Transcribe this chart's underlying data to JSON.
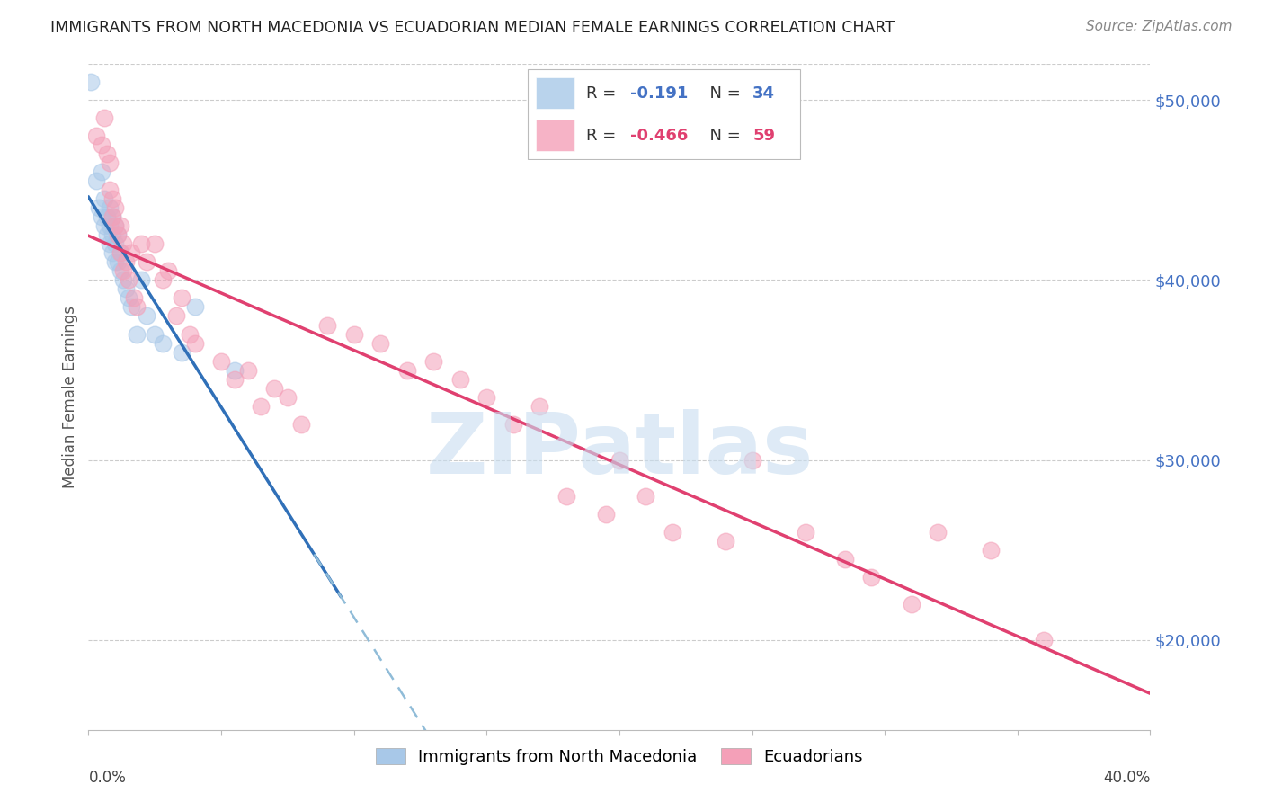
{
  "title": "IMMIGRANTS FROM NORTH MACEDONIA VS ECUADORIAN MEDIAN FEMALE EARNINGS CORRELATION CHART",
  "source": "Source: ZipAtlas.com",
  "ylabel": "Median Female Earnings",
  "ytick_values": [
    50000,
    40000,
    30000,
    20000
  ],
  "ymin": 15000,
  "ymax": 52000,
  "xmin": 0.0,
  "xmax": 0.4,
  "legend_blue_r": "-0.191",
  "legend_blue_n": "34",
  "legend_pink_r": "-0.466",
  "legend_pink_n": "59",
  "blue_color": "#a8c8e8",
  "pink_color": "#f4a0b8",
  "blue_line_color": "#3070b8",
  "pink_line_color": "#e04070",
  "blue_dashed_color": "#90bcd8",
  "watermark_color": "#c8ddf0",
  "blue_x": [
    0.001,
    0.003,
    0.004,
    0.005,
    0.005,
    0.006,
    0.006,
    0.007,
    0.007,
    0.008,
    0.008,
    0.008,
    0.009,
    0.009,
    0.009,
    0.01,
    0.01,
    0.01,
    0.011,
    0.011,
    0.012,
    0.012,
    0.013,
    0.014,
    0.015,
    0.016,
    0.018,
    0.02,
    0.022,
    0.025,
    0.028,
    0.035,
    0.04,
    0.055
  ],
  "blue_y": [
    51000,
    45500,
    44000,
    46000,
    43500,
    44500,
    43000,
    43500,
    42500,
    44000,
    43000,
    42000,
    43500,
    42500,
    41500,
    43000,
    42000,
    41000,
    42500,
    41000,
    41500,
    40500,
    40000,
    39500,
    39000,
    38500,
    37000,
    40000,
    38000,
    37000,
    36500,
    36000,
    38500,
    35000
  ],
  "pink_x": [
    0.003,
    0.005,
    0.006,
    0.007,
    0.008,
    0.008,
    0.009,
    0.009,
    0.01,
    0.01,
    0.011,
    0.012,
    0.012,
    0.013,
    0.013,
    0.014,
    0.015,
    0.016,
    0.017,
    0.018,
    0.02,
    0.022,
    0.025,
    0.028,
    0.03,
    0.033,
    0.035,
    0.038,
    0.04,
    0.05,
    0.055,
    0.06,
    0.065,
    0.07,
    0.075,
    0.08,
    0.09,
    0.1,
    0.11,
    0.12,
    0.13,
    0.14,
    0.15,
    0.16,
    0.17,
    0.18,
    0.195,
    0.2,
    0.21,
    0.22,
    0.24,
    0.25,
    0.27,
    0.285,
    0.295,
    0.31,
    0.32,
    0.34,
    0.36
  ],
  "pink_y": [
    48000,
    47500,
    49000,
    47000,
    46500,
    45000,
    44500,
    43500,
    44000,
    43000,
    42500,
    43000,
    41500,
    42000,
    40500,
    41000,
    40000,
    41500,
    39000,
    38500,
    42000,
    41000,
    42000,
    40000,
    40500,
    38000,
    39000,
    37000,
    36500,
    35500,
    34500,
    35000,
    33000,
    34000,
    33500,
    32000,
    37500,
    37000,
    36500,
    35000,
    35500,
    34500,
    33500,
    32000,
    33000,
    28000,
    27000,
    30000,
    28000,
    26000,
    25500,
    30000,
    26000,
    24500,
    23500,
    22000,
    26000,
    25000,
    20000
  ]
}
